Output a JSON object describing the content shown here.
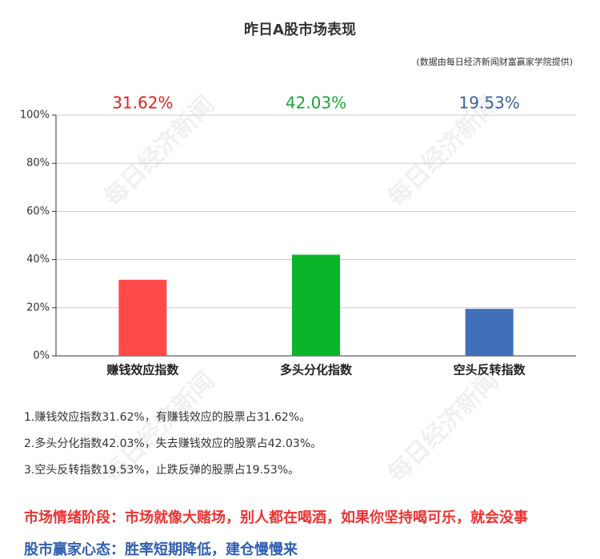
{
  "chart_data": {
    "type": "bar",
    "title": "昨日A股市场表现",
    "subtitle": "(数据由每日经济新闻财富赢家学院提供)",
    "categories": [
      "赚钱效应指数",
      "多头分化指数",
      "空头反转指数"
    ],
    "values": [
      31.62,
      42.03,
      19.53
    ],
    "value_labels": [
      "31.62%",
      "42.03%",
      "19.53%"
    ],
    "colors": [
      "#ff4a4a",
      "#0ab52a",
      "#3f6fb8"
    ],
    "label_colors": [
      "#ee1c1c",
      "#19a835",
      "#3b62a8"
    ],
    "ylim": [
      0,
      100
    ],
    "yticks": [
      {
        "value": 0,
        "label": "0%"
      },
      {
        "value": 20,
        "label": "20%"
      },
      {
        "value": 40,
        "label": "40%"
      },
      {
        "value": 60,
        "label": "60%"
      },
      {
        "value": 80,
        "label": "80%"
      },
      {
        "value": 100,
        "label": "100%"
      }
    ],
    "grid": true
  },
  "watermark": "每日经济新闻",
  "notes": [
    "1.赚钱效应指数31.62%，有赚钱效应的股票占31.62%。",
    "2.多头分化指数42.03%，失去赚钱效应的股票占42.03%。",
    "3.空头反转指数19.53%，止跌反弹的股票占19.53%。"
  ],
  "sentiment": {
    "stage": "市场情绪阶段：市场就像大赌场，别人都在喝酒，如果你坚持喝可乐，就会没事",
    "mindset": "股市赢家心态：胜率短期降低，建仓慢慢来"
  }
}
